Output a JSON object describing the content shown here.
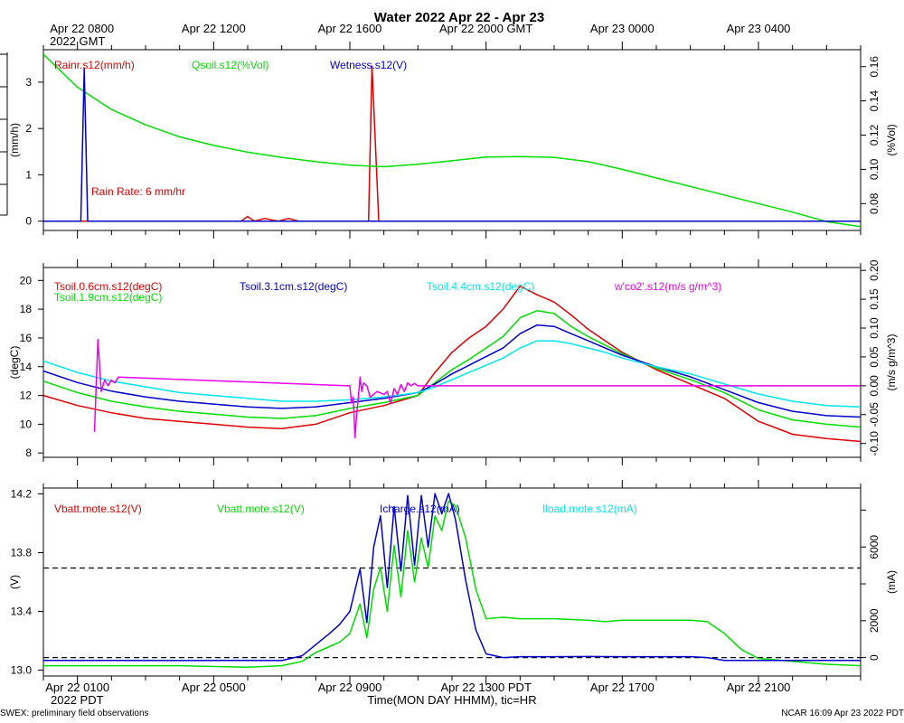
{
  "title": "Water 2022 Apr 22 - Apr 23",
  "top_axis": {
    "ticks": [
      {
        "label": "Apr 22 0800",
        "hour": 1
      },
      {
        "label": "Apr 22 1200",
        "hour": 5
      },
      {
        "label": "Apr 22 1600",
        "hour": 9
      },
      {
        "label": "Apr 22 2000 GMT",
        "hour": 13
      },
      {
        "label": "Apr 23 0000",
        "hour": 17
      },
      {
        "label": "Apr 23 0400",
        "hour": 21
      }
    ],
    "sublabel": "2022 GMT"
  },
  "bottom_axis": {
    "ticks": [
      {
        "label": "Apr 22 0100",
        "hour": 1
      },
      {
        "label": "Apr 22 0500",
        "hour": 5
      },
      {
        "label": "Apr 22 0900",
        "hour": 9
      },
      {
        "label": "Apr 22 1300 PDT",
        "hour": 13
      },
      {
        "label": "Apr 22 1700",
        "hour": 17
      },
      {
        "label": "Apr 22 2100",
        "hour": 21
      }
    ],
    "sublabel": "2022 PDT",
    "xlabel": "Time(MON DAY HHMM), tic=HR"
  },
  "footer": {
    "left": "SWEX: preliminary field observations",
    "right": "NCAR 16:09 Apr 23 2022 PDT"
  },
  "colors": {
    "red": "#dd0000",
    "green": "#00dd00",
    "blue": "#0000cc",
    "cyan": "#00e5ee",
    "magenta": "#ee00ee"
  },
  "chart_data": [
    {
      "type": "line",
      "ylabel_left": "(mm/h)",
      "ylabel_right": "(%Vol)",
      "ylim_left": [
        -0.2,
        3.7
      ],
      "ylim_right": [
        0.0643,
        0.1699
      ],
      "yticks_left": [
        0,
        1,
        2,
        3
      ],
      "yticks_right": [
        0.08,
        0.1,
        0.12,
        0.14,
        0.16
      ],
      "right_tick_labels": [
        "0.08",
        "0.10",
        "0.12",
        "0.14",
        "0.16"
      ],
      "zero_line": 0,
      "legend": [
        {
          "label": "Rainr.s12(mm/h)",
          "color": "#dd0000"
        },
        {
          "label": "Qsoil.s12(%Vol)",
          "color": "#00dd00"
        },
        {
          "label": "Wetness.s12(V)",
          "color": "#0000cc"
        }
      ],
      "annotation": "Rain Rate: 6 mm/hr",
      "series": [
        {
          "name": "Rainr.s12(mm/h)",
          "color": "#dd0000",
          "axis": "left",
          "x": [
            0,
            5.8,
            6,
            6.2,
            6.5,
            6.9,
            7.2,
            7.5,
            7.8,
            8.3,
            9.3,
            9.55,
            9.65,
            9.85,
            10.0,
            24
          ],
          "y": [
            0,
            0,
            0.1,
            0,
            0.06,
            0,
            0.06,
            0,
            0,
            0,
            0,
            0,
            3.35,
            0,
            0,
            0
          ]
        },
        {
          "name": "Qsoil.s12(%Vol)",
          "color": "#00dd00",
          "axis": "right",
          "x": [
            0,
            1,
            2,
            3,
            4,
            5,
            6,
            7,
            8,
            9,
            10,
            11,
            12,
            13,
            14,
            15,
            16,
            17,
            18,
            19,
            20,
            21,
            22,
            23,
            24
          ],
          "y": [
            0.1672,
            0.148,
            0.135,
            0.126,
            0.119,
            0.114,
            0.11,
            0.107,
            0.1045,
            0.1025,
            0.1015,
            0.103,
            0.105,
            0.1072,
            0.1075,
            0.107,
            0.1045,
            0.1,
            0.095,
            0.09,
            0.085,
            0.08,
            0.075,
            0.0695,
            0.0665
          ]
        },
        {
          "name": "Wetness.s12(V)",
          "color": "#0000cc",
          "axis": "left",
          "x": [
            0,
            1.1,
            1.2,
            1.3,
            24
          ],
          "y": [
            0,
            0,
            3.3,
            0,
            0
          ]
        }
      ]
    },
    {
      "type": "line",
      "ylabel_left": "(degC)",
      "ylabel_right": "(m/s g/m^3)",
      "ylim_left": [
        7.7,
        20.9
      ],
      "ylim_right": [
        -0.124,
        0.205
      ],
      "yticks_left": [
        8,
        10,
        12,
        14,
        16,
        18,
        20
      ],
      "yticks_right": [
        -0.1,
        -0.05,
        0.0,
        0.05,
        0.1,
        0.15,
        0.2
      ],
      "right_tick_labels": [
        "-0.10",
        "-0.05",
        "0.00",
        "0.05",
        "0.10",
        "0.15",
        "0.20"
      ],
      "zero_line": 0,
      "legend": [
        {
          "label": "Tsoil.0.6cm.s12(degC)",
          "color": "#dd0000"
        },
        {
          "label": "Tsoil.1.9cm.s12(degC)",
          "color": "#00dd00"
        },
        {
          "label": "Tsoil.3.1cm.s12(degC)",
          "color": "#0000cc"
        },
        {
          "label": "Tsoil.4.4cm.s12(degC)",
          "color": "#00e5ee"
        },
        {
          "label": "w'co2'.s12(m/s g/m^3)",
          "color": "#ee00ee"
        }
      ],
      "series": [
        {
          "name": "Tsoil.0.6cm.s12(degC)",
          "color": "#dd0000",
          "axis": "left",
          "x": [
            0,
            1,
            2,
            3,
            4,
            5,
            6,
            7,
            8,
            9,
            10,
            11,
            11.5,
            12,
            12.5,
            13,
            13.5,
            14,
            14.5,
            15,
            15.5,
            16,
            16.5,
            17,
            18,
            19,
            20,
            21,
            22,
            23,
            24
          ],
          "y": [
            12.0,
            11.3,
            10.8,
            10.4,
            10.2,
            10.0,
            9.8,
            9.7,
            10.0,
            10.8,
            11.3,
            12.0,
            13.6,
            15.0,
            16.0,
            16.8,
            18.0,
            19.6,
            19.0,
            18.5,
            17.6,
            16.6,
            15.8,
            15.0,
            13.8,
            12.8,
            11.8,
            10.2,
            9.3,
            9.0,
            8.8
          ]
        },
        {
          "name": "Tsoil.1.9cm.s12(degC)",
          "color": "#00dd00",
          "axis": "left",
          "x": [
            0,
            1,
            2,
            3,
            4,
            5,
            6,
            7,
            8,
            9,
            10,
            11,
            11.5,
            12,
            12.5,
            13,
            13.5,
            14,
            14.5,
            15,
            15.5,
            16,
            16.5,
            17,
            18,
            19,
            20,
            21,
            22,
            23,
            24
          ],
          "y": [
            13.0,
            12.2,
            11.6,
            11.2,
            10.9,
            10.7,
            10.5,
            10.4,
            10.6,
            11.1,
            11.5,
            12.0,
            12.9,
            13.8,
            14.5,
            15.3,
            16.1,
            17.4,
            17.9,
            17.7,
            16.8,
            16.1,
            15.5,
            14.9,
            13.9,
            13.1,
            12.2,
            11.0,
            10.3,
            10.0,
            9.8
          ]
        },
        {
          "name": "Tsoil.3.1cm.s12(degC)",
          "color": "#0000cc",
          "axis": "left",
          "x": [
            0,
            1,
            2,
            3,
            4,
            5,
            6,
            7,
            8,
            9,
            10,
            11,
            11.5,
            12,
            12.5,
            13,
            13.5,
            14,
            14.5,
            15,
            15.5,
            16,
            16.5,
            17,
            18,
            19,
            20,
            21,
            22,
            23,
            24
          ],
          "y": [
            13.7,
            12.9,
            12.3,
            11.9,
            11.6,
            11.4,
            11.2,
            11.1,
            11.2,
            11.5,
            11.8,
            12.2,
            12.8,
            13.5,
            14.1,
            14.7,
            15.3,
            16.3,
            16.9,
            16.8,
            16.3,
            15.8,
            15.3,
            14.8,
            14.0,
            13.3,
            12.4,
            11.5,
            10.9,
            10.6,
            10.5
          ]
        },
        {
          "name": "Tsoil.4.4cm.s12(degC)",
          "color": "#00e5ee",
          "axis": "left",
          "x": [
            0,
            1,
            2,
            3,
            4,
            5,
            6,
            7,
            8,
            9,
            10,
            11,
            11.5,
            12,
            12.5,
            13,
            13.5,
            14,
            14.5,
            15,
            15.5,
            16,
            16.5,
            17,
            18,
            19,
            20,
            21,
            22,
            23,
            24
          ],
          "y": [
            14.4,
            13.6,
            13.0,
            12.6,
            12.2,
            12.0,
            11.8,
            11.6,
            11.6,
            11.7,
            11.9,
            12.2,
            12.6,
            13.1,
            13.6,
            14.1,
            14.6,
            15.3,
            15.8,
            15.8,
            15.6,
            15.3,
            15.0,
            14.6,
            14.0,
            13.5,
            12.8,
            12.1,
            11.6,
            11.3,
            11.2
          ]
        },
        {
          "name": "w'co2'.s12(m/s g/m^3)",
          "color": "#ee00ee",
          "axis": "right",
          "x": [
            1.5,
            1.6,
            1.7,
            1.8,
            1.9,
            2.0,
            2.1,
            2.2,
            9.0,
            9.05,
            9.1,
            9.15,
            9.2,
            9.25,
            9.3,
            9.35,
            9.4,
            9.5,
            9.6,
            9.8,
            10.0,
            10.1,
            10.2,
            10.3,
            10.4,
            10.5,
            10.6,
            10.7,
            10.8,
            10.9,
            11.0,
            24.0
          ],
          "y": [
            -0.08,
            0.08,
            -0.01,
            0.01,
            0.0,
            0.01,
            0.005,
            0.015,
            0.0,
            -0.03,
            -0.02,
            -0.09,
            -0.05,
            -0.02,
            0.015,
            -0.01,
            0.005,
            0.0,
            -0.02,
            -0.01,
            -0.015,
            -0.01,
            -0.03,
            -0.005,
            -0.015,
            0.002,
            -0.01,
            0.005,
            0.0,
            0.004,
            0.0,
            0.0
          ]
        }
      ]
    },
    {
      "type": "line",
      "ylabel_left": "(V)",
      "ylabel_right": "(mA)",
      "ylim_left": [
        12.96,
        14.24
      ],
      "ylim_right": [
        -1000,
        9200
      ],
      "yticks_left": [
        13.0,
        13.4,
        13.8,
        14.2
      ],
      "yticks_right": [
        0,
        2000,
        4000,
        6000,
        8000
      ],
      "left_tick_labels": [
        "13.0",
        "13.4",
        "13.8",
        "14.2"
      ],
      "right_tick_labels": [
        "0",
        "2000",
        "",
        "6000",
        ""
      ],
      "zero_line_right": 0,
      "legend": [
        {
          "label": "Vbatt.mote.s12(V)",
          "color": "#dd0000"
        },
        {
          "label": "Vbatt.mote.s12(V)",
          "color": "#00dd00"
        },
        {
          "label": "Icharge.s12(mA)",
          "color": "#0000cc"
        },
        {
          "label": "Iload.mote.s12(mA)",
          "color": "#00e5ee"
        }
      ],
      "series": [
        {
          "name": "Vbatt.mote.s12(V)",
          "color": "#00dd00",
          "axis": "left",
          "x": [
            0,
            2,
            4,
            6,
            7,
            7.6,
            8,
            8.4,
            8.7,
            9,
            9.3,
            9.5,
            9.7,
            9.9,
            10.1,
            10.3,
            10.5,
            10.7,
            10.9,
            11.1,
            11.3,
            11.5,
            11.7,
            11.9,
            12.1,
            12.4,
            12.7,
            13,
            13.5,
            14,
            15,
            16,
            16.5,
            17,
            18,
            19,
            19.5,
            20,
            20.5,
            21,
            22,
            23,
            24
          ],
          "y": [
            13.03,
            13.03,
            13.03,
            13.02,
            13.03,
            13.06,
            13.12,
            13.16,
            13.19,
            13.25,
            13.45,
            13.22,
            13.55,
            13.7,
            13.4,
            13.85,
            13.5,
            13.95,
            13.6,
            13.9,
            13.7,
            14.05,
            13.95,
            14.15,
            14.12,
            13.9,
            13.55,
            13.35,
            13.36,
            13.35,
            13.35,
            13.34,
            13.33,
            13.34,
            13.34,
            13.34,
            13.33,
            13.25,
            13.14,
            13.08,
            13.06,
            13.04,
            13.03
          ]
        },
        {
          "name": "Icharge.s12(mA)",
          "color": "#0000cc",
          "axis": "right",
          "x": [
            0,
            2,
            4,
            6,
            7,
            7.6,
            8,
            8.4,
            8.7,
            9,
            9.3,
            9.5,
            9.7,
            9.9,
            10.1,
            10.3,
            10.5,
            10.7,
            10.9,
            11.1,
            11.3,
            11.5,
            11.7,
            11.9,
            12.1,
            12.4,
            12.7,
            13,
            13.5,
            14,
            15,
            16,
            17,
            18,
            19,
            19.5,
            20,
            21,
            22,
            23,
            24
          ],
          "y": [
            -150,
            -150,
            -160,
            -150,
            -160,
            100,
            700,
            1300,
            1800,
            2500,
            4800,
            1900,
            6000,
            7700,
            3800,
            8200,
            4700,
            8800,
            5000,
            8800,
            6000,
            8900,
            7800,
            8900,
            7500,
            4200,
            1500,
            200,
            0,
            50,
            50,
            60,
            50,
            50,
            50,
            0,
            -150,
            -150,
            -150,
            -150,
            -150
          ]
        }
      ]
    }
  ]
}
